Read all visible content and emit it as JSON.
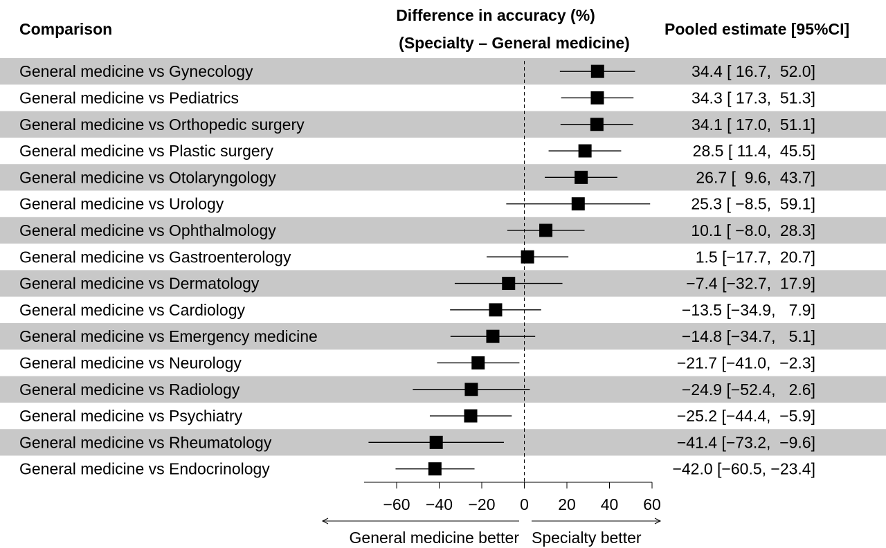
{
  "chart_data": {
    "type": "forest",
    "header": {
      "comparison": "Comparison",
      "axis_title_line1": "Difference in accuracy (%)",
      "axis_title_line2": "(Specialty – General medicine)",
      "estimate": "Pooled estimate [95%CI]"
    },
    "xlim": [
      -78,
      62
    ],
    "xticks": [
      -60,
      -40,
      -20,
      0,
      20,
      40,
      60
    ],
    "xtick_labels": [
      "−60",
      "−40",
      "−20",
      "0",
      "20",
      "40",
      "60"
    ],
    "reference_line": 0,
    "direction_left": "General medicine better",
    "direction_right": "Specialty better",
    "shaded_row_color": "#c8c8c8",
    "rows": [
      {
        "label": "General medicine vs Gynecology",
        "est": 34.4,
        "lo": 16.7,
        "hi": 52.0,
        "text": "34.4 [ 16.7,  52.0]"
      },
      {
        "label": "General medicine vs Pediatrics",
        "est": 34.3,
        "lo": 17.3,
        "hi": 51.3,
        "text": "34.3 [ 17.3,  51.3]"
      },
      {
        "label": "General medicine vs Orthopedic surgery",
        "est": 34.1,
        "lo": 17.0,
        "hi": 51.1,
        "text": "34.1 [ 17.0,  51.1]"
      },
      {
        "label": "General medicine vs Plastic surgery",
        "est": 28.5,
        "lo": 11.4,
        "hi": 45.5,
        "text": "28.5 [ 11.4,  45.5]"
      },
      {
        "label": "General medicine vs Otolaryngology",
        "est": 26.7,
        "lo": 9.6,
        "hi": 43.7,
        "text": "26.7 [  9.6,  43.7]"
      },
      {
        "label": "General medicine vs Urology",
        "est": 25.3,
        "lo": -8.5,
        "hi": 59.1,
        "text": "25.3 [ −8.5,  59.1]"
      },
      {
        "label": "General medicine vs Ophthalmology",
        "est": 10.1,
        "lo": -8.0,
        "hi": 28.3,
        "text": "10.1 [ −8.0,  28.3]"
      },
      {
        "label": "General medicine vs Gastroenterology",
        "est": 1.5,
        "lo": -17.7,
        "hi": 20.7,
        "text": " 1.5 [−17.7,  20.7]"
      },
      {
        "label": "General medicine vs Dermatology",
        "est": -7.4,
        "lo": -32.7,
        "hi": 17.9,
        "text": "−7.4 [−32.7,  17.9]"
      },
      {
        "label": "General medicine vs Cardiology",
        "est": -13.5,
        "lo": -34.9,
        "hi": 7.9,
        "text": "−13.5 [−34.9,   7.9]"
      },
      {
        "label": "General medicine vs Emergency medicine",
        "est": -14.8,
        "lo": -34.7,
        "hi": 5.1,
        "text": "−14.8 [−34.7,   5.1]"
      },
      {
        "label": "General medicine vs Neurology",
        "est": -21.7,
        "lo": -41.0,
        "hi": -2.3,
        "text": "−21.7 [−41.0,  −2.3]"
      },
      {
        "label": "General medicine vs Radiology",
        "est": -24.9,
        "lo": -52.4,
        "hi": 2.6,
        "text": "−24.9 [−52.4,   2.6]"
      },
      {
        "label": "General medicine vs Psychiatry",
        "est": -25.2,
        "lo": -44.4,
        "hi": -5.9,
        "text": "−25.2 [−44.4,  −5.9]"
      },
      {
        "label": "General medicine vs Rheumatology",
        "est": -41.4,
        "lo": -73.2,
        "hi": -9.6,
        "text": "−41.4 [−73.2,  −9.6]"
      },
      {
        "label": "General medicine vs Endocrinology",
        "est": -42.0,
        "lo": -60.5,
        "hi": -23.4,
        "text": "−42.0 [−60.5, −23.4]"
      }
    ]
  }
}
